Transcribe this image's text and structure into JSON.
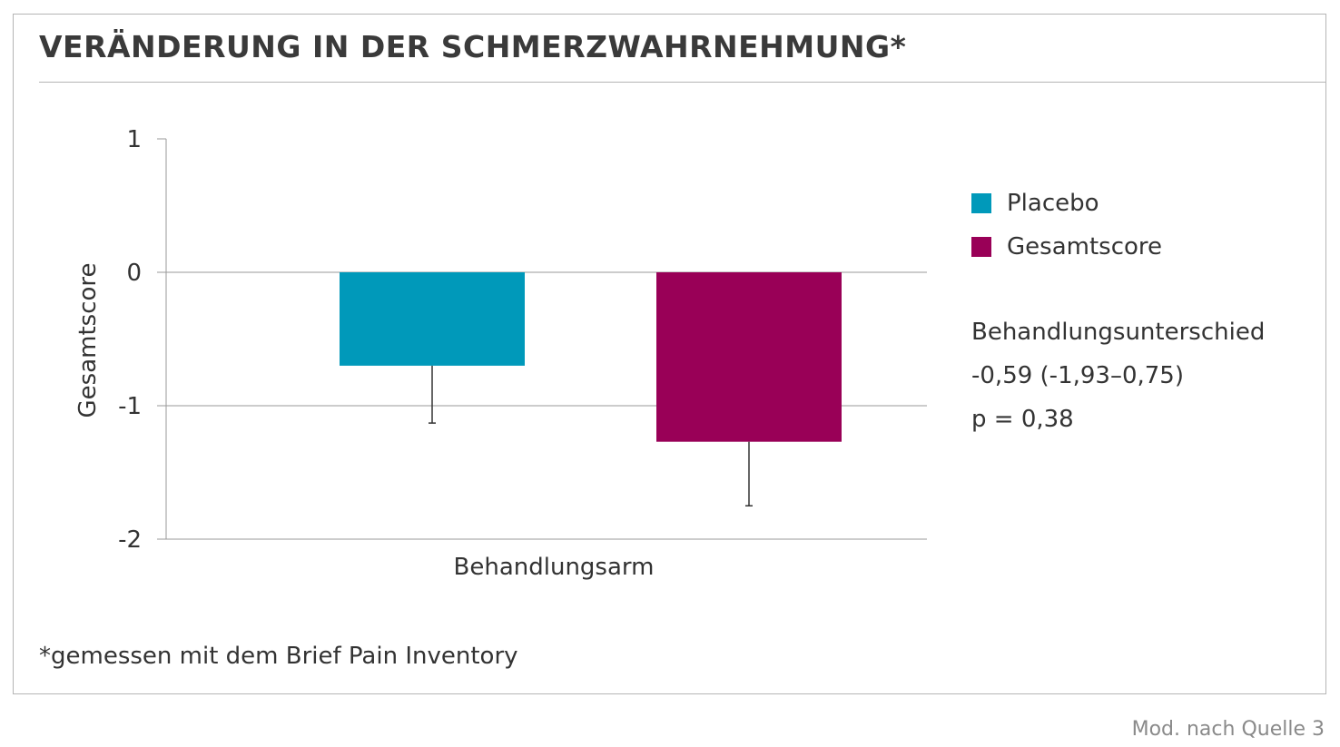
{
  "title": "VERÄNDERUNG IN DER SCHMERZWAHRNEHMUNG*",
  "footnote": "*gemessen mit dem Brief Pain Inventory",
  "source": "Mod. nach Quelle 3",
  "legend": [
    {
      "label": "Placebo",
      "color": "#0099ba"
    },
    {
      "label": "Gesamtscore",
      "color": "#990057"
    }
  ],
  "annotation": {
    "line1": "Behandlungsunterschied",
    "line2": "-0,59 (-1,93–0,75)",
    "line3": "p = 0,38"
  },
  "chart_data": {
    "type": "bar",
    "xlabel": "Behandlungsarm",
    "ylabel": "Gesamtscore",
    "ylim": [
      -2,
      1
    ],
    "yticks": [
      1,
      0,
      -1,
      -2
    ],
    "ytick_labels": [
      "1",
      "0",
      "-1",
      "-2"
    ],
    "grid": true,
    "legend_position": "right",
    "series": [
      {
        "name": "Placebo",
        "color": "#0099ba",
        "value": -0.7,
        "error_low": -1.13
      },
      {
        "name": "Gesamtscore",
        "color": "#990057",
        "value": -1.27,
        "error_low": -1.75
      }
    ]
  }
}
